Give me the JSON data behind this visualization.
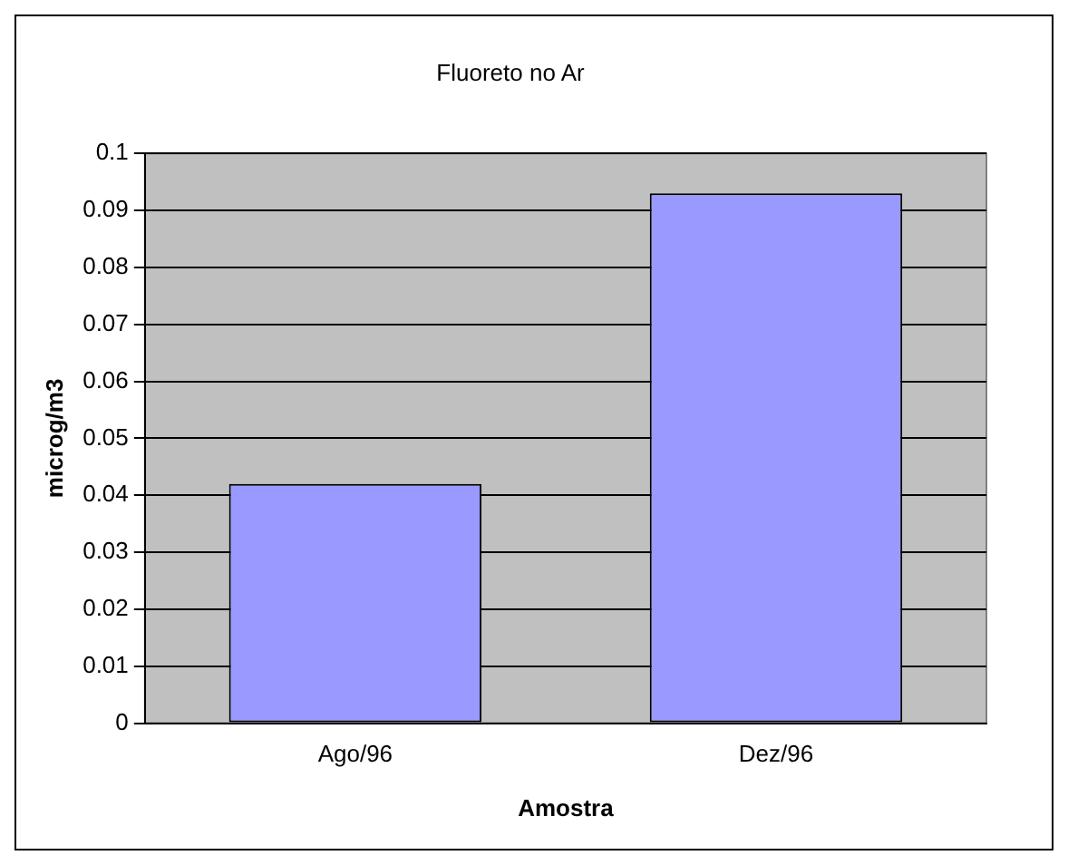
{
  "chart_data": {
    "type": "bar",
    "title": "Fluoreto no Ar",
    "xlabel": "Amostra",
    "ylabel": "microg/m3",
    "categories": [
      "Ago/96",
      "Dez/96"
    ],
    "values": [
      0.042,
      0.093
    ],
    "color": "#9999ff",
    "ylim": [
      0,
      0.1
    ],
    "yticks": [
      0,
      0.01,
      0.02,
      0.03,
      0.04,
      0.05,
      0.06,
      0.07,
      0.08,
      0.09,
      0.1
    ],
    "grid": "y"
  }
}
